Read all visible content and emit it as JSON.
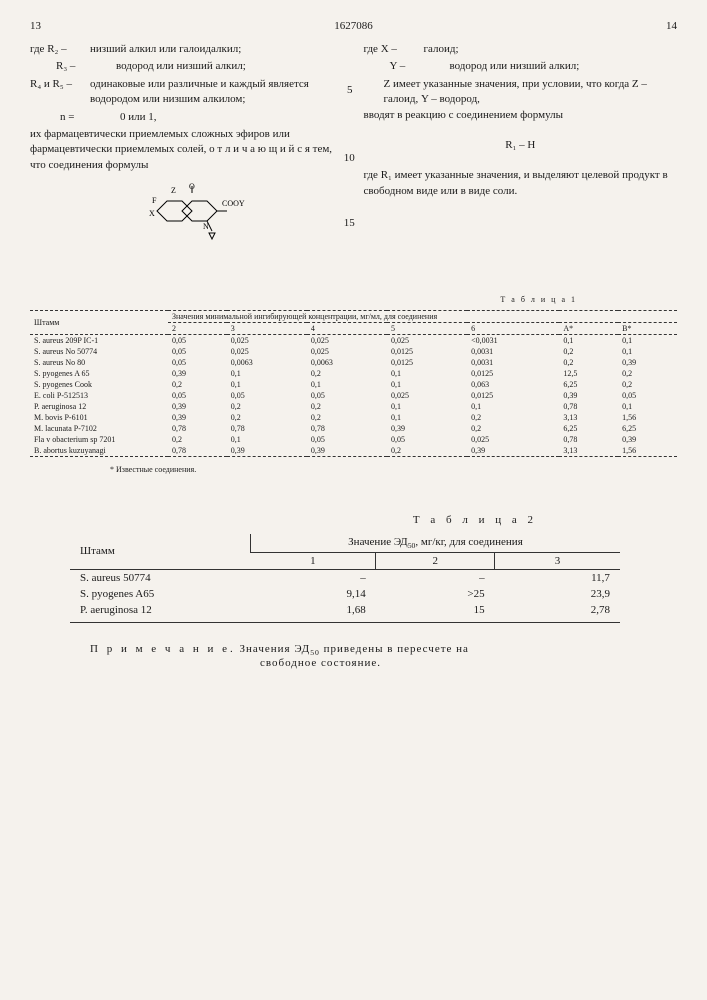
{
  "header": {
    "page_left": "13",
    "doc_number": "1627086",
    "page_right": "14"
  },
  "left_col": {
    "def_r2": {
      "label": "где R₂ –",
      "body": "низший алкил или галоидалкил;"
    },
    "def_r3": {
      "label": "R₃ –",
      "body": "водород или низший алкил;"
    },
    "def_r45": {
      "label": "R₄ и R₅ –",
      "body": "одинаковые или различные и каждый является водородом или низшим алкилом;"
    },
    "def_n": {
      "label": "n =",
      "body": "0 или 1,"
    },
    "para1": "их фармацевтически приемлемых сложных эфиров или фармацевтически приемлемых солей, о т л и ч а ю щ и й с я  тем, что соединения формулы",
    "formula_svg_label": "COOY"
  },
  "right_col": {
    "def_x": {
      "label": "где X –",
      "body": "галоид;"
    },
    "def_y": {
      "label": "Y –",
      "body": "водород или низший алкил;"
    },
    "def_z": "Z имеет указанные значения, при условии, что когда Z – галоид, Y – водород,",
    "para2": "вводят в реакцию с соединением формулы",
    "formula2": "R₁ – H",
    "para3": "где R₁ имеет указанные значения, и выделяют целевой продукт в свободном виде или в виде соли."
  },
  "line_nums": {
    "n5": "5",
    "n10": "10",
    "n15": "15"
  },
  "table1": {
    "title": "Т а б л и ц а  1",
    "col_strain": "Штамм",
    "col_group": "Значения минимальной ингибирующей концентрации, мг/мл, для соединения",
    "cols": [
      "2",
      "3",
      "4",
      "5",
      "6",
      "A*",
      "B*"
    ],
    "rows": [
      {
        "s": "S. aureus 209P IC-1",
        "v": [
          "0,05",
          "0,025",
          "0,025",
          "0,025",
          "<0,0031",
          "0,1",
          "0,1"
        ]
      },
      {
        "s": "S. aureus No 50774",
        "v": [
          "0,05",
          "0,025",
          "0,025",
          "0,0125",
          "0,0031",
          "0,2",
          "0,1"
        ]
      },
      {
        "s": "S. aureus No 80",
        "v": [
          "0,05",
          "0,0063",
          "0,0063",
          "0,0125",
          "0,0031",
          "0,2",
          "0,39"
        ]
      },
      {
        "s": "S. pyogenes A 65",
        "v": [
          "0,39",
          "0,1",
          "0,2",
          "0,1",
          "0,0125",
          "12,5",
          "0,2"
        ]
      },
      {
        "s": "S. pyogenes Cook",
        "v": [
          "0,2",
          "0,1",
          "0,1",
          "0,1",
          "0,063",
          "6,25",
          "0,2"
        ]
      },
      {
        "s": "E. coli P-512513",
        "v": [
          "0,05",
          "0,05",
          "0,05",
          "0,025",
          "0,0125",
          "0,39",
          "0,05"
        ]
      },
      {
        "s": "P. aeruginosa 12",
        "v": [
          "0,39",
          "0,2",
          "0,2",
          "0,1",
          "0,1",
          "0,78",
          "0,1"
        ]
      },
      {
        "s": "M. bovis P-6101",
        "v": [
          "0,39",
          "0,2",
          "0,2",
          "0,1",
          "0,2",
          "3,13",
          "1,56"
        ]
      },
      {
        "s": "M. lacunata P-7102",
        "v": [
          "0,78",
          "0,78",
          "0,78",
          "0,39",
          "0,2",
          "6,25",
          "6,25"
        ]
      },
      {
        "s": "Fla v obacterium sp 7201",
        "v": [
          "0,2",
          "0,1",
          "0,05",
          "0,05",
          "0,025",
          "0,78",
          "0,39"
        ]
      },
      {
        "s": "B. abortus kuzuyanagi",
        "v": [
          "0,78",
          "0,39",
          "0,39",
          "0,2",
          "0,39",
          "3,13",
          "1,56"
        ]
      }
    ],
    "footnote": "* Известные соединения."
  },
  "table2": {
    "title": "Т а б л и ц а  2",
    "col_strain": "Штамм",
    "col_group": "Значение ЭД₅₀, мг/кг, для соединения",
    "cols": [
      "1",
      "2",
      "3"
    ],
    "rows": [
      {
        "s": "S. aureus 50774",
        "v": [
          "–",
          "–",
          "11,7"
        ]
      },
      {
        "s": "S. pyogenes A65",
        "v": [
          "9,14",
          ">25",
          "23,9"
        ]
      },
      {
        "s": "P. aeruginosa 12",
        "v": [
          "1,68",
          "15",
          "2,78"
        ]
      }
    ]
  },
  "note": {
    "label": "П р и м е ч а н и е.",
    "body1": "Значения ЭД₅₀ приведены в пересчете на",
    "body2": "свободное состояние."
  }
}
